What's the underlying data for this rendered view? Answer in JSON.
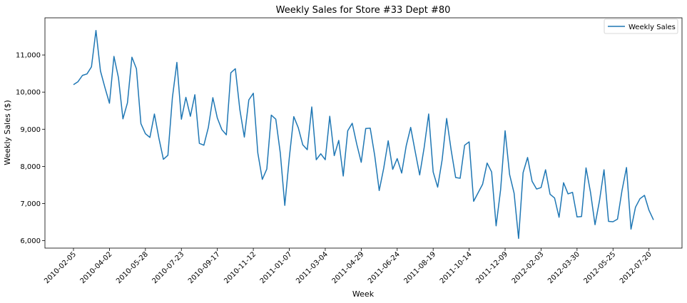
{
  "chart_data": {
    "type": "line",
    "title": "Weekly Sales for Store #33 Dept #80",
    "xlabel": "Week",
    "ylabel": "Weekly Sales ($)",
    "x_tick_labels": [
      "2010-02-05",
      "2010-04-02",
      "2010-05-28",
      "2010-07-23",
      "2010-09-17",
      "2010-11-12",
      "2011-01-07",
      "2011-03-04",
      "2011-04-29",
      "2011-06-24",
      "2011-08-19",
      "2011-10-14",
      "2011-12-09",
      "2012-02-03",
      "2012-03-30",
      "2012-05-25",
      "2012-07-20"
    ],
    "y_ticks": [
      6000,
      7000,
      8000,
      9000,
      10000,
      11000
    ],
    "y_tick_labels": [
      "6,000",
      "7,000",
      "8,000",
      "9,000",
      "10,000",
      "11,000"
    ],
    "ylim": [
      5800,
      12000
    ],
    "grid": false,
    "legend_position": "top-right",
    "line_color": "#1f77b4",
    "series": [
      {
        "name": "Weekly Sales",
        "x_start": "2010-02-05",
        "x_step_days": 7,
        "values": [
          10200,
          10280,
          10450,
          10490,
          10680,
          11660,
          10570,
          10120,
          9700,
          10960,
          10390,
          9280,
          9710,
          10940,
          10630,
          9150,
          8880,
          8780,
          9410,
          8760,
          8190,
          8300,
          9850,
          10800,
          9270,
          9860,
          9350,
          9930,
          8620,
          8570,
          9050,
          9850,
          9300,
          8990,
          8850,
          10520,
          10630,
          9530,
          8790,
          9790,
          9970,
          8360,
          7650,
          7930,
          9380,
          9270,
          8360,
          6950,
          8230,
          9340,
          9040,
          8580,
          8450,
          9600,
          8180,
          8340,
          8180,
          9350,
          8290,
          8700,
          7740,
          8960,
          9160,
          8600,
          8110,
          9020,
          9030,
          8290,
          7350,
          7950,
          8690,
          7920,
          8210,
          7820,
          8550,
          9050,
          8400,
          7770,
          8510,
          9410,
          7850,
          7440,
          8180,
          9290,
          8440,
          7700,
          7680,
          8570,
          8660,
          7060,
          7290,
          7520,
          8090,
          7850,
          6400,
          7370,
          8960,
          7780,
          7280,
          6060,
          7830,
          8240,
          7600,
          7390,
          7430,
          7910,
          7250,
          7150,
          6630,
          7560,
          7260,
          7300,
          6640,
          6650,
          7960,
          7300,
          6430,
          7080,
          7910,
          6520,
          6510,
          6580,
          7350,
          7970,
          6310,
          6900,
          7130,
          7220,
          6820,
          6560
        ]
      }
    ]
  }
}
